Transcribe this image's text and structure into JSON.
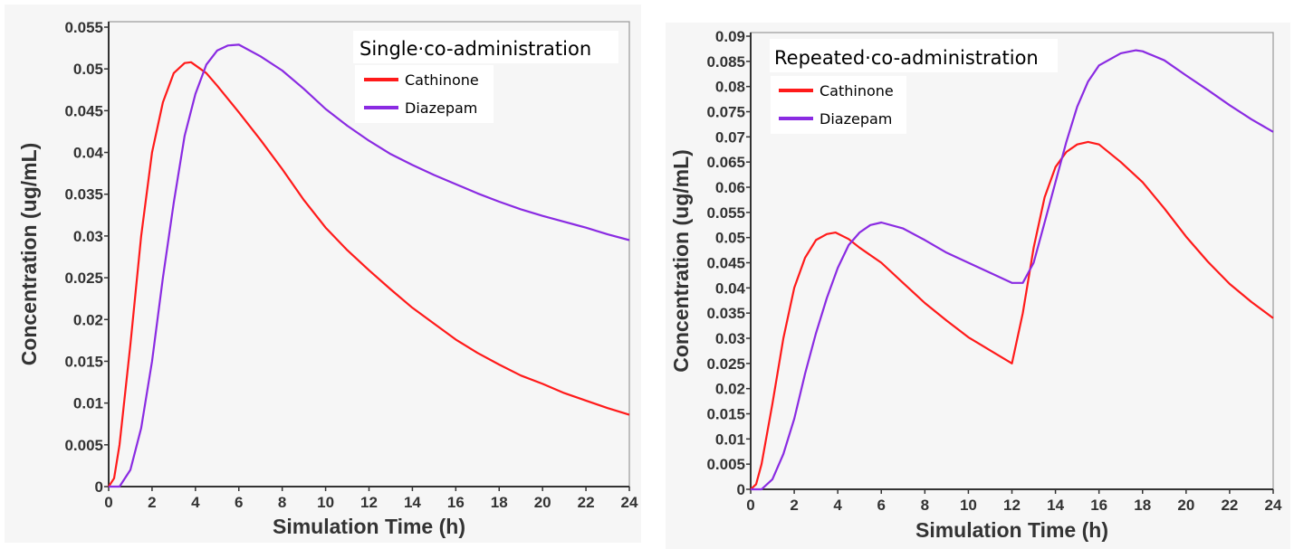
{
  "chart_data": [
    {
      "type": "line",
      "legend_title": "Single·co-administration",
      "xlabel": "Simulation Time (h)",
      "ylabel": "Concentration (ug/mL)",
      "xlim": [
        0,
        24
      ],
      "ylim": [
        0,
        0.055
      ],
      "x_ticks": [
        "0",
        "2",
        "4",
        "6",
        "8",
        "10",
        "12",
        "14",
        "16",
        "18",
        "20",
        "22",
        "24"
      ],
      "y_ticks": [
        "0",
        "0.005",
        "0.01",
        "0.015",
        "0.02",
        "0.025",
        "0.03",
        "0.035",
        "0.04",
        "0.045",
        "0.05",
        "0.055"
      ],
      "legend_position": "top-right",
      "grid": false,
      "series": [
        {
          "name": "Cathinone",
          "color": "#ff1a1a",
          "x": [
            0,
            0.25,
            0.5,
            1,
            1.5,
            2,
            2.5,
            3,
            3.5,
            3.8,
            4.5,
            5,
            6,
            7,
            8,
            9,
            10,
            11,
            12,
            13,
            14,
            15,
            16,
            17,
            18,
            19,
            20,
            21,
            22,
            23,
            24
          ],
          "y": [
            0,
            0.001,
            0.005,
            0.017,
            0.03,
            0.04,
            0.046,
            0.0495,
            0.0507,
            0.0508,
            0.0495,
            0.048,
            0.0448,
            0.0415,
            0.038,
            0.0343,
            0.031,
            0.0283,
            0.0259,
            0.0236,
            0.0214,
            0.0195,
            0.0176,
            0.016,
            0.0146,
            0.0133,
            0.0123,
            0.0112,
            0.0103,
            0.0094,
            0.0086
          ]
        },
        {
          "name": "Diazepam",
          "color": "#8a2be2",
          "x": [
            0,
            0.5,
            1,
            1.5,
            2,
            2.5,
            3,
            3.5,
            4,
            4.5,
            5,
            5.5,
            6,
            7,
            8,
            9,
            10,
            11,
            12,
            13,
            14,
            15,
            16,
            17,
            18,
            19,
            20,
            21,
            22,
            23,
            24
          ],
          "y": [
            0,
            0,
            0.002,
            0.007,
            0.015,
            0.025,
            0.034,
            0.042,
            0.047,
            0.0505,
            0.0522,
            0.0528,
            0.0529,
            0.0515,
            0.0498,
            0.0476,
            0.0452,
            0.0432,
            0.0414,
            0.0398,
            0.0385,
            0.0373,
            0.0362,
            0.0351,
            0.0341,
            0.0332,
            0.0324,
            0.0317,
            0.031,
            0.0302,
            0.0295
          ]
        }
      ]
    },
    {
      "type": "line",
      "legend_title": "Repeated·co-administration",
      "xlabel": "Simulation Time (h)",
      "ylabel": "Concentration (ug/mL)",
      "xlim": [
        0,
        24
      ],
      "ylim": [
        0,
        0.09
      ],
      "x_ticks": [
        "0",
        "2",
        "4",
        "6",
        "8",
        "10",
        "12",
        "14",
        "16",
        "18",
        "20",
        "22",
        "24"
      ],
      "y_ticks": [
        "0",
        "0.005",
        "0.01",
        "0.015",
        "0.02",
        "0.025",
        "0.03",
        "0.035",
        "0.04",
        "0.045",
        "0.05",
        "0.055",
        "0.06",
        "0.065",
        "0.07",
        "0.075",
        "0.08",
        "0.085",
        "0.09"
      ],
      "legend_position": "top-left",
      "grid": false,
      "series": [
        {
          "name": "Cathinone",
          "color": "#ff1a1a",
          "x": [
            0,
            0.25,
            0.5,
            1,
            1.5,
            2,
            2.5,
            3,
            3.5,
            3.9,
            4.5,
            5,
            6,
            7,
            8,
            9,
            10,
            11,
            12,
            12.5,
            13,
            13.5,
            14,
            14.5,
            15,
            15.5,
            16,
            17,
            18,
            19,
            20,
            21,
            22,
            23,
            24
          ],
          "y": [
            0,
            0.001,
            0.005,
            0.017,
            0.03,
            0.04,
            0.046,
            0.0495,
            0.0507,
            0.051,
            0.0497,
            0.048,
            0.045,
            0.041,
            0.037,
            0.0335,
            0.0302,
            0.0276,
            0.025,
            0.035,
            0.048,
            0.058,
            0.064,
            0.067,
            0.0685,
            0.069,
            0.0685,
            0.065,
            0.061,
            0.0558,
            0.0502,
            0.0452,
            0.0408,
            0.0372,
            0.034
          ]
        },
        {
          "name": "Diazepam",
          "color": "#8a2be2",
          "x": [
            0,
            0.5,
            1,
            1.5,
            2,
            2.5,
            3,
            3.5,
            4,
            4.5,
            5,
            5.5,
            6,
            7,
            8,
            9,
            10,
            11,
            12,
            12.5,
            13,
            13.5,
            14,
            14.5,
            15,
            15.5,
            16,
            17,
            17.7,
            18,
            19,
            20,
            21,
            22,
            23,
            24
          ],
          "y": [
            0,
            0,
            0.002,
            0.007,
            0.014,
            0.023,
            0.031,
            0.038,
            0.044,
            0.0485,
            0.051,
            0.0525,
            0.053,
            0.0518,
            0.0495,
            0.047,
            0.045,
            0.043,
            0.041,
            0.041,
            0.045,
            0.053,
            0.061,
            0.069,
            0.076,
            0.081,
            0.0842,
            0.0866,
            0.0872,
            0.087,
            0.0852,
            0.0822,
            0.0793,
            0.0763,
            0.0735,
            0.071
          ]
        }
      ]
    }
  ]
}
